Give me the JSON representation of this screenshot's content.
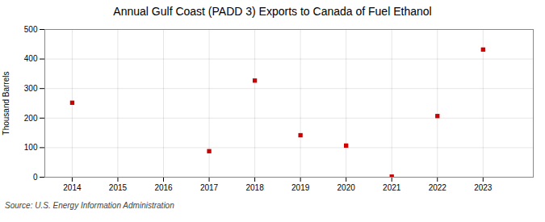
{
  "chart_data": {
    "type": "scatter",
    "title": "Annual Gulf Coast (PADD 3) Exports to Canada of Fuel Ethanol",
    "ylabel": "Thousand Barrels",
    "annotations": [
      "Source: U.S. Energy Information Administration"
    ],
    "x": [
      2014,
      2017,
      2018,
      2019,
      2020,
      2021,
      2022,
      2023
    ],
    "values": [
      252,
      88,
      327,
      142,
      107,
      2,
      207,
      432
    ],
    "color": "#cc0000",
    "marker": "square",
    "xlim": [
      2013.4,
      2024.1
    ],
    "xticks": [
      2014,
      2015,
      2016,
      2017,
      2018,
      2019,
      2020,
      2021,
      2022,
      2023
    ],
    "ylim": [
      0,
      500
    ],
    "yticks": [
      0,
      100,
      200,
      300,
      400,
      500
    ],
    "grid": true
  }
}
